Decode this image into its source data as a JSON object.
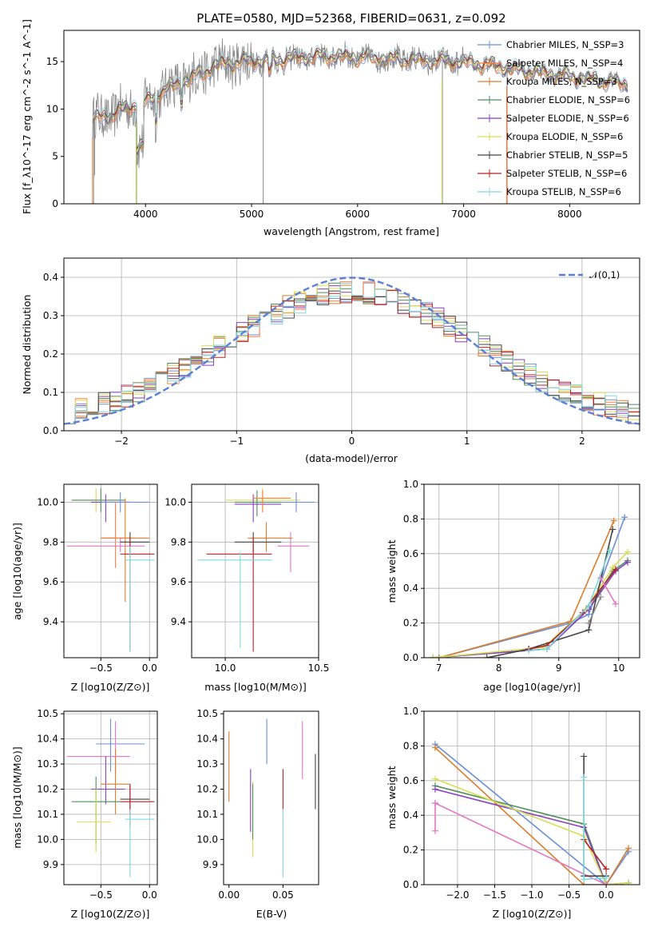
{
  "chart_data": [
    {
      "type": "line",
      "title": "PLATE=0580, MJD=52368, FIBERID=0631, z=0.092",
      "xlabel": "wavelength [Angstrom, rest frame]",
      "ylabel": "Flux [f_λ10^-17 erg cm^-2 s^-1 A^-1]",
      "xlim": [
        3230,
        8660
      ],
      "ylim": [
        0,
        18.3
      ],
      "xticks": [
        4000,
        5000,
        6000,
        7000,
        8000
      ],
      "yticks": [
        0,
        5,
        10,
        15
      ],
      "legend_position": "right",
      "series": [
        {
          "name": "Chabrier MILES, N_SSP=3",
          "color": "#6a8fd6"
        },
        {
          "name": "Salpeter MILES, N_SSP=4",
          "color": "#ff7f3f"
        },
        {
          "name": "Kroupa MILES, N_SSP=3",
          "color": "#d97d2a"
        },
        {
          "name": "Chabrier ELODIE, N_SSP=6",
          "color": "#4e8f5a"
        },
        {
          "name": "Salpeter ELODIE, N_SSP=6",
          "color": "#8a3fbf"
        },
        {
          "name": "Kroupa ELODIE, N_SSP=6",
          "color": "#d3e055"
        },
        {
          "name": "Chabrier STELIB, N_SSP=5",
          "color": "#444444"
        },
        {
          "name": "Salpeter STELIB, N_SSP=6",
          "color": "#b22222"
        },
        {
          "name": "Kroupa STELIB, N_SSP=6",
          "color": "#7fd8e0"
        }
      ],
      "data_spectrum_color": "#888888"
    },
    {
      "type": "line",
      "xlabel": "(data-model)/error",
      "ylabel": "Normed distribution",
      "xlim": [
        -2.5,
        2.5
      ],
      "ylim": [
        0,
        0.45
      ],
      "xticks": [
        -2,
        -1,
        0,
        1,
        2
      ],
      "yticks": [
        0.0,
        0.1,
        0.2,
        0.3,
        0.4
      ],
      "grid": true,
      "legend_position": "top-right",
      "reference_curve": {
        "name": "𝒩(0,1)",
        "mean": 0,
        "sigma": 1,
        "color": "#5b7fd4"
      },
      "histogram_bin_width": 0.1
    },
    {
      "type": "scatter",
      "xlabel": "Z [log10(Z/Z⊙)]",
      "ylabel": "age [log10(age/yr)]",
      "xlim": [
        -0.88,
        0.08
      ],
      "ylim": [
        9.22,
        10.09
      ],
      "xticks": [
        -0.5,
        0.0
      ],
      "yticks": [
        9.4,
        9.6,
        9.8,
        10.0
      ],
      "grid": true,
      "points": [
        {
          "x": -0.55,
          "xl": -0.8,
          "xh": -0.3,
          "y": 10.01,
          "yl": 9.95,
          "yh": 10.07,
          "color": "#d3e055"
        },
        {
          "x": -0.5,
          "xl": -0.8,
          "xh": -0.25,
          "y": 10.01,
          "yl": 9.95,
          "yh": 10.07,
          "color": "#4e8f5a"
        },
        {
          "x": -0.45,
          "xl": -0.6,
          "xh": -0.2,
          "y": 10.0,
          "yl": 9.9,
          "yh": 10.04,
          "color": "#8a3fbf"
        },
        {
          "x": -0.3,
          "xl": -0.5,
          "xh": 0.0,
          "y": 10.0,
          "yl": 9.95,
          "yh": 10.05,
          "color": "#6a8fd6"
        },
        {
          "x": -0.25,
          "xl": -0.5,
          "xh": 0.0,
          "y": 9.82,
          "yl": 9.5,
          "yh": 10.02,
          "color": "#d97d2a"
        },
        {
          "x": -0.35,
          "xl": -0.5,
          "xh": -0.15,
          "y": 9.82,
          "yl": 9.67,
          "yh": 10.0,
          "color": "#ff7f3f"
        },
        {
          "x": -0.3,
          "xl": -0.85,
          "xh": -0.05,
          "y": 9.78,
          "yl": 9.75,
          "yh": 9.82,
          "color": "#e377c2"
        },
        {
          "x": -0.2,
          "xl": -0.3,
          "xh": 0.0,
          "y": 9.8,
          "yl": 9.75,
          "yh": 9.85,
          "color": "#444444"
        },
        {
          "x": -0.2,
          "xl": -0.3,
          "xh": 0.05,
          "y": 9.74,
          "yl": 9.25,
          "yh": 9.82,
          "color": "#b22222"
        },
        {
          "x": -0.2,
          "xl": -0.25,
          "xh": 0.05,
          "y": 9.71,
          "yl": 9.25,
          "yh": 9.78,
          "color": "#7fd8e0"
        }
      ]
    },
    {
      "type": "scatter",
      "xlabel": "mass [log10(M/M⊙)]",
      "xlim": [
        9.82,
        10.5
      ],
      "ylim": [
        9.22,
        10.09
      ],
      "xticks": [
        10.0,
        10.5
      ],
      "yticks": [
        9.4,
        9.6,
        9.8,
        10.0
      ],
      "grid": true,
      "points": [
        {
          "x": 10.2,
          "xl": 10.0,
          "xh": 10.4,
          "y": 10.01,
          "yl": 9.95,
          "yh": 10.07,
          "color": "#d3e055"
        },
        {
          "x": 10.17,
          "xl": 10.05,
          "xh": 10.3,
          "y": 10.0,
          "yl": 9.93,
          "yh": 10.06,
          "color": "#4e8f5a"
        },
        {
          "x": 10.15,
          "xl": 10.05,
          "xh": 10.3,
          "y": 9.99,
          "yl": 9.9,
          "yh": 10.04,
          "color": "#8a3fbf"
        },
        {
          "x": 10.38,
          "xl": 10.3,
          "xh": 10.48,
          "y": 10.0,
          "yl": 9.95,
          "yh": 10.05,
          "color": "#6a8fd6"
        },
        {
          "x": 10.2,
          "xl": 10.15,
          "xh": 10.35,
          "y": 10.02,
          "yl": 9.95,
          "yh": 10.06,
          "color": "#ff7f3f"
        },
        {
          "x": 10.22,
          "xl": 10.12,
          "xh": 10.36,
          "y": 9.82,
          "yl": 9.75,
          "yh": 9.9,
          "color": "#d97d2a"
        },
        {
          "x": 10.35,
          "xl": 10.28,
          "xh": 10.45,
          "y": 9.78,
          "yl": 9.65,
          "yh": 9.85,
          "color": "#e377c2"
        },
        {
          "x": 10.15,
          "xl": 10.05,
          "xh": 10.3,
          "y": 9.8,
          "yl": 9.75,
          "yh": 9.85,
          "color": "#444444"
        },
        {
          "x": 10.15,
          "xl": 9.9,
          "xh": 10.25,
          "y": 9.74,
          "yl": 9.25,
          "yh": 9.82,
          "color": "#b22222"
        },
        {
          "x": 10.08,
          "xl": 9.85,
          "xh": 10.25,
          "y": 9.71,
          "yl": 9.27,
          "yh": 9.75,
          "color": "#7fd8e0"
        }
      ]
    },
    {
      "type": "line",
      "xlabel": "age [log10(age/yr)]",
      "ylabel": "mass weight",
      "xlim": [
        6.75,
        10.35
      ],
      "ylim": [
        0,
        1.0
      ],
      "xticks": [
        7,
        8,
        9,
        10
      ],
      "yticks": [
        0.0,
        0.2,
        0.4,
        0.6,
        0.8,
        1.0
      ],
      "grid": true,
      "series": [
        {
          "color": "#6a8fd6",
          "x": [
            7.0,
            9.2,
            9.5,
            10.1
          ],
          "y": [
            0.0,
            0.2,
            0.25,
            0.81
          ]
        },
        {
          "color": "#d97d2a",
          "x": [
            7.0,
            9.2,
            9.92
          ],
          "y": [
            0.0,
            0.21,
            0.79
          ]
        },
        {
          "color": "#4e8f5a",
          "x": [
            6.9,
            8.8,
            9.5,
            9.9,
            10.15
          ],
          "y": [
            0.0,
            0.05,
            0.28,
            0.5,
            0.56
          ]
        },
        {
          "color": "#8a3fbf",
          "x": [
            6.9,
            8.8,
            9.5,
            9.95,
            10.15
          ],
          "y": [
            0.0,
            0.05,
            0.28,
            0.5,
            0.55
          ]
        },
        {
          "color": "#d3e055",
          "x": [
            6.9,
            8.75,
            9.45,
            9.9,
            10.15
          ],
          "y": [
            0.0,
            0.06,
            0.28,
            0.52,
            0.61
          ]
        },
        {
          "color": "#444444",
          "x": [
            7.8,
            8.5,
            9.5,
            9.9
          ],
          "y": [
            0.0,
            0.05,
            0.16,
            0.74
          ]
        },
        {
          "color": "#b22222",
          "x": [
            8.5,
            8.8,
            9.4,
            9.95
          ],
          "y": [
            0.05,
            0.07,
            0.26,
            0.51
          ]
        },
        {
          "color": "#7fd8e0",
          "x": [
            8.5,
            8.8,
            9.5,
            9.85
          ],
          "y": [
            0.04,
            0.05,
            0.3,
            0.62
          ]
        },
        {
          "color": "#e377c2",
          "x": [
            9.7,
            9.95
          ],
          "y": [
            0.46,
            0.31
          ]
        },
        {
          "color": "#8c8c8c",
          "x": [
            9.5,
            9.7
          ],
          "y": [
            0.2,
            0.35
          ]
        }
      ]
    },
    {
      "type": "scatter",
      "xlabel": "Z [log10(Z/Z⊙)]",
      "ylabel": "mass [log10(M/M⊙)]",
      "xlim": [
        -0.88,
        0.08
      ],
      "ylim": [
        9.82,
        10.51
      ],
      "xticks": [
        -0.5,
        0.0
      ],
      "yticks": [
        9.9,
        10.0,
        10.1,
        10.2,
        10.3,
        10.4,
        10.5
      ],
      "grid": true,
      "points": [
        {
          "x": -0.4,
          "xl": -0.55,
          "xh": -0.05,
          "y": 10.38,
          "yl": 10.27,
          "yh": 10.48,
          "color": "#6a8fd6"
        },
        {
          "x": -0.35,
          "xl": -0.85,
          "xh": -0.2,
          "y": 10.33,
          "yl": 10.26,
          "yh": 10.47,
          "color": "#e377c2"
        },
        {
          "x": -0.45,
          "xl": -0.6,
          "xh": -0.25,
          "y": 10.2,
          "yl": 10.14,
          "yh": 10.33,
          "color": "#8a3fbf"
        },
        {
          "x": -0.35,
          "xl": -0.5,
          "xh": -0.2,
          "y": 10.22,
          "yl": 10.1,
          "yh": 10.36,
          "color": "#d97d2a"
        },
        {
          "x": -0.55,
          "xl": -0.8,
          "xh": -0.3,
          "y": 10.15,
          "yl": 9.98,
          "yh": 10.25,
          "color": "#4e8f5a"
        },
        {
          "x": -0.55,
          "xl": -0.75,
          "xh": -0.4,
          "y": 10.07,
          "yl": 9.95,
          "yh": 10.2,
          "color": "#d3e055"
        },
        {
          "x": -0.2,
          "xl": -0.3,
          "xh": 0.0,
          "y": 10.16,
          "yl": 10.1,
          "yh": 10.22,
          "color": "#444444"
        },
        {
          "x": -0.2,
          "xl": -0.3,
          "xh": 0.05,
          "y": 10.15,
          "yl": 10.05,
          "yh": 10.22,
          "color": "#b22222"
        },
        {
          "x": -0.2,
          "xl": -0.25,
          "xh": 0.05,
          "y": 10.08,
          "yl": 9.85,
          "yh": 10.12,
          "color": "#7fd8e0"
        }
      ]
    },
    {
      "type": "scatter",
      "xlabel": "E(B-V)",
      "xlim": [
        -0.005,
        0.083
      ],
      "ylim": [
        9.82,
        10.51
      ],
      "xticks": [
        0.0,
        0.05
      ],
      "yticks": [
        9.9,
        10.0,
        10.1,
        10.2,
        10.3,
        10.4,
        10.5
      ],
      "points": [
        {
          "x": 0.0,
          "y": 10.3,
          "yl": 10.15,
          "yh": 10.43,
          "color": "#d97d2a"
        },
        {
          "x": 0.02,
          "y": 10.2,
          "yl": 10.03,
          "yh": 10.28,
          "color": "#8a3fbf"
        },
        {
          "x": 0.022,
          "y": 10.1,
          "yl": 9.93,
          "yh": 10.23,
          "color": "#d3e055"
        },
        {
          "x": 0.022,
          "y": 10.15,
          "yl": 10.0,
          "yh": 10.22,
          "color": "#4e8f5a"
        },
        {
          "x": 0.035,
          "y": 10.38,
          "yl": 10.3,
          "yh": 10.48,
          "color": "#6a8fd6"
        },
        {
          "x": 0.05,
          "y": 10.2,
          "yl": 10.12,
          "yh": 10.28,
          "color": "#b22222"
        },
        {
          "x": 0.05,
          "y": 10.08,
          "yl": 9.85,
          "yh": 10.12,
          "color": "#7fd8e0"
        },
        {
          "x": 0.068,
          "y": 10.33,
          "yl": 10.24,
          "yh": 10.47,
          "color": "#e377c2"
        },
        {
          "x": 0.08,
          "y": 10.2,
          "yl": 10.12,
          "yh": 10.34,
          "color": "#444444"
        }
      ]
    },
    {
      "type": "line",
      "xlabel": "Z [log10(Z/Z⊙)]",
      "ylabel": "mass weight",
      "xlim": [
        -2.45,
        0.45
      ],
      "ylim": [
        0,
        1.0
      ],
      "xticks": [
        -2.0,
        -1.5,
        -1.0,
        -0.5,
        0.0
      ],
      "yticks": [
        0.0,
        0.2,
        0.4,
        0.6,
        0.8,
        1.0
      ],
      "grid": true,
      "series": [
        {
          "color": "#6a8fd6",
          "x": [
            -2.3,
            0.0,
            0.3
          ],
          "y": [
            0.81,
            0.0,
            0.19
          ]
        },
        {
          "color": "#d97d2a",
          "x": [
            -2.3,
            -0.3,
            0.0,
            0.3
          ],
          "y": [
            0.79,
            0.0,
            0.0,
            0.21
          ]
        },
        {
          "color": "#4e8f5a",
          "x": [
            -2.3,
            -0.3,
            0.0,
            0.3
          ],
          "y": [
            0.57,
            0.35,
            0.0,
            0.01
          ]
        },
        {
          "color": "#8a3fbf",
          "x": [
            -2.3,
            -0.3,
            0.0,
            0.3
          ],
          "y": [
            0.55,
            0.33,
            0.0,
            0.01
          ]
        },
        {
          "color": "#d3e055",
          "x": [
            -2.3,
            -0.3,
            0.0,
            0.3
          ],
          "y": [
            0.61,
            0.28,
            0.0,
            0.01
          ]
        },
        {
          "color": "#e377c2",
          "x": [
            -2.3,
            0.0
          ],
          "y": [
            0.47,
            0.0
          ]
        },
        {
          "color": "#e377c2",
          "x": [
            -2.3,
            -2.3
          ],
          "y": [
            0.31,
            0.47
          ]
        },
        {
          "color": "#444444",
          "x": [
            -0.3,
            -0.3,
            0.0
          ],
          "y": [
            0.74,
            0.05,
            0.05
          ]
        },
        {
          "color": "#b22222",
          "x": [
            -0.3,
            0.0
          ],
          "y": [
            0.26,
            0.09
          ]
        },
        {
          "color": "#7fd8e0",
          "x": [
            -0.3,
            -0.3,
            0.0
          ],
          "y": [
            0.62,
            0.03,
            0.04
          ]
        }
      ]
    }
  ]
}
